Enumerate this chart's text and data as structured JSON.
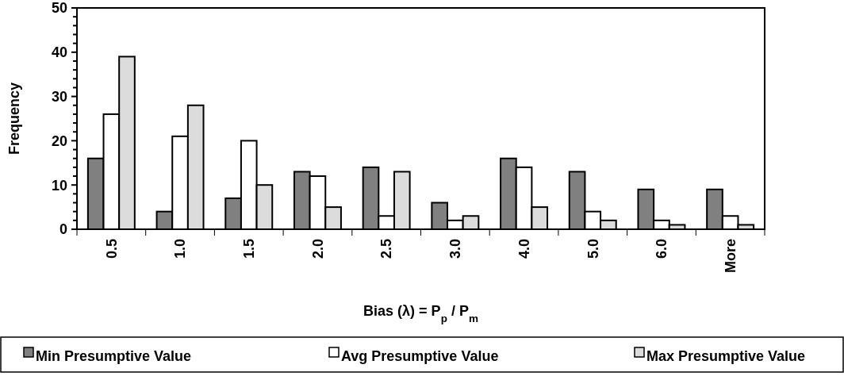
{
  "chart_data": {
    "type": "bar",
    "xlabel": "Bias (λ) = P$_{p}$ / P$_{m}$",
    "ylabel": "Frequency",
    "categories": [
      "0.5",
      "1.0",
      "1.5",
      "2.0",
      "2.5",
      "3.0",
      "4.0",
      "5.0",
      "6.0",
      "More"
    ],
    "series": [
      {
        "name": "Min Presumptive Value",
        "color": "#808080",
        "values": [
          16,
          4,
          7,
          13,
          14,
          6,
          16,
          13,
          9,
          9
        ]
      },
      {
        "name": "Avg Presumptive Value",
        "color": "#ffffff",
        "values": [
          26,
          21,
          20,
          12,
          3,
          2,
          14,
          4,
          2,
          3
        ]
      },
      {
        "name": "Max Presumptive Value",
        "color": "#dcdcdc",
        "values": [
          39,
          28,
          10,
          5,
          13,
          3,
          5,
          2,
          1,
          1
        ]
      }
    ],
    "ylim": [
      0,
      50
    ],
    "yticks": [
      0,
      {
        "value": 2,
        "label": null
      },
      {
        "value": 4,
        "label": null
      },
      {
        "value": 6,
        "label": null
      },
      {
        "value": 8,
        "label": null
      },
      10,
      {
        "value": 12,
        "label": null
      },
      {
        "value": 14,
        "label": null
      },
      {
        "value": 16,
        "label": null
      },
      {
        "value": 18,
        "label": null
      },
      20,
      {
        "value": 22,
        "label": null
      },
      {
        "value": 24,
        "label": null
      },
      {
        "value": 26,
        "label": null
      },
      {
        "value": 28,
        "label": null
      },
      30,
      {
        "value": 32,
        "label": null
      },
      {
        "value": 34,
        "label": null
      },
      {
        "value": 36,
        "label": null
      },
      {
        "value": 38,
        "label": null
      },
      40,
      {
        "value": 42,
        "label": null
      },
      {
        "value": 44,
        "label": null
      },
      {
        "value": 46,
        "label": null
      },
      {
        "value": 48,
        "label": null
      },
      50
    ],
    "grid": false,
    "legend": "bottom"
  }
}
